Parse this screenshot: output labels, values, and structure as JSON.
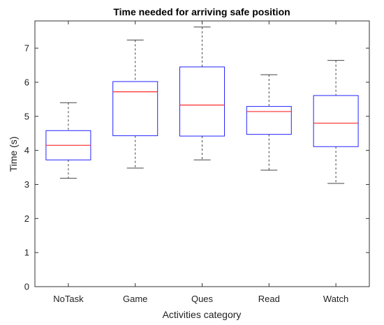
{
  "chart_data": {
    "type": "boxplot",
    "title": "Time needed for arriving safe position",
    "xlabel": "Activities category",
    "ylabel": "Time (s)",
    "ylim": [
      0,
      7.8
    ],
    "yticks": [
      0,
      1,
      2,
      3,
      4,
      5,
      6,
      7
    ],
    "categories": [
      "NoTask",
      "Game",
      "Ques",
      "Read",
      "Watch"
    ],
    "boxes": [
      {
        "category": "NoTask",
        "whisker_low": 3.18,
        "q1": 3.72,
        "median": 4.15,
        "q3": 4.58,
        "whisker_high": 5.4
      },
      {
        "category": "Game",
        "whisker_low": 3.48,
        "q1": 4.43,
        "median": 5.72,
        "q3": 6.02,
        "whisker_high": 7.24
      },
      {
        "category": "Ques",
        "whisker_low": 3.72,
        "q1": 4.42,
        "median": 5.33,
        "q3": 6.45,
        "whisker_high": 7.62
      },
      {
        "category": "Read",
        "whisker_low": 3.42,
        "q1": 4.47,
        "median": 5.14,
        "q3": 5.29,
        "whisker_high": 6.22
      },
      {
        "category": "Watch",
        "whisker_low": 3.03,
        "q1": 4.11,
        "median": 4.8,
        "q3": 5.61,
        "whisker_high": 6.64
      }
    ],
    "colors": {
      "box": "#2323ff",
      "median": "#ff2a2a",
      "whisker": "#444444",
      "axis": "#333333"
    },
    "grid": false
  }
}
